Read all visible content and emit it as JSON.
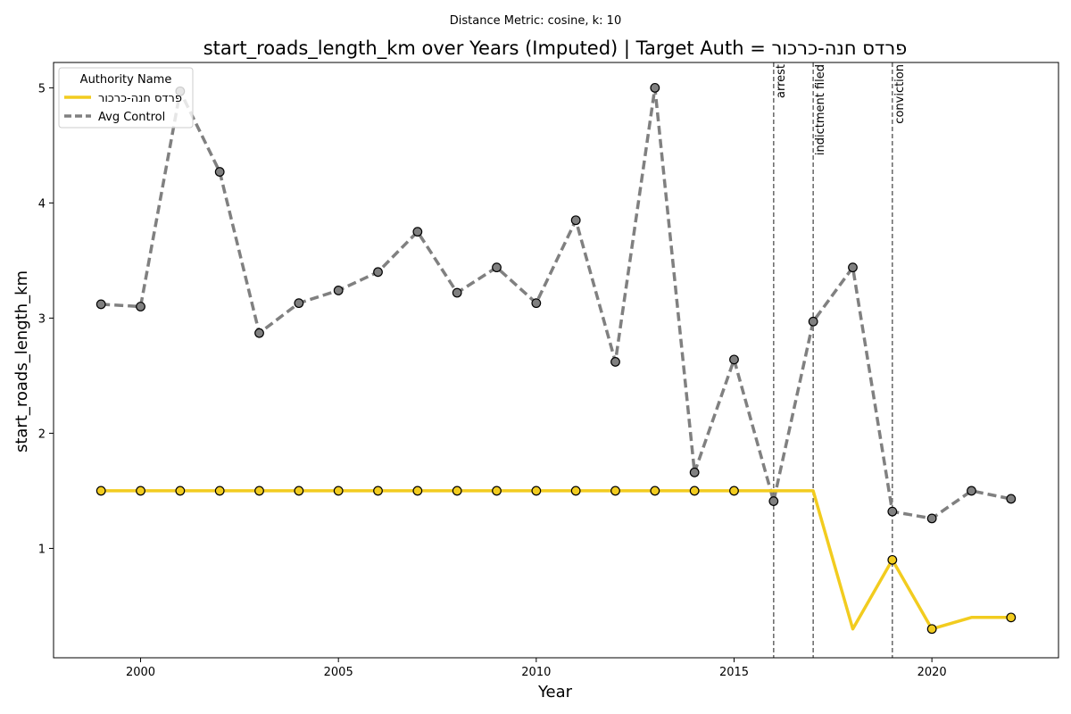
{
  "chart_data": {
    "type": "line",
    "suptitle": "Distance Metric: cosine, k: 10",
    "title": "start_roads_length_km over Years (Imputed) | Target Auth = פרדס חנה-כרכור",
    "xlabel": "Year",
    "ylabel": "start_roads_length_km",
    "xlim": [
      1997.8,
      2023.2
    ],
    "ylim": [
      0.05,
      5.22
    ],
    "xticks": [
      2000,
      2005,
      2010,
      2015,
      2020
    ],
    "yticks": [
      1,
      2,
      3,
      4,
      5
    ],
    "grid": false,
    "legend": {
      "title": "Authority Name",
      "placement": "upper-left"
    },
    "x": [
      1999,
      2000,
      2001,
      2002,
      2003,
      2004,
      2005,
      2006,
      2007,
      2008,
      2009,
      2010,
      2011,
      2012,
      2013,
      2014,
      2015,
      2016,
      2017,
      2018,
      2019,
      2020,
      2021,
      2022
    ],
    "series": [
      {
        "name": "פרדס חנה-כרכור",
        "color": "#f2cc1f",
        "style": "solid",
        "values": [
          1.5,
          1.5,
          1.5,
          1.5,
          1.5,
          1.5,
          1.5,
          1.5,
          1.5,
          1.5,
          1.5,
          1.5,
          1.5,
          1.5,
          1.5,
          1.5,
          1.5,
          1.5,
          1.5,
          0.3,
          0.9,
          0.3,
          0.4,
          0.4
        ],
        "marker_years": [
          1999,
          2000,
          2001,
          2002,
          2003,
          2004,
          2005,
          2006,
          2007,
          2008,
          2009,
          2010,
          2011,
          2012,
          2013,
          2014,
          2015,
          2019,
          2020,
          2022
        ]
      },
      {
        "name": "Avg Control",
        "color": "#808080",
        "style": "dashed",
        "values": [
          3.12,
          3.1,
          4.97,
          4.27,
          2.87,
          3.13,
          3.24,
          3.4,
          3.75,
          3.22,
          3.44,
          3.13,
          3.85,
          2.62,
          5.0,
          1.66,
          2.64,
          1.41,
          2.97,
          3.44,
          1.32,
          1.26,
          1.5,
          1.43
        ],
        "marker_years": [
          1999,
          2000,
          2001,
          2002,
          2003,
          2004,
          2005,
          2006,
          2007,
          2008,
          2009,
          2010,
          2011,
          2012,
          2013,
          2014,
          2015,
          2016,
          2017,
          2018,
          2019,
          2020,
          2021,
          2022
        ]
      }
    ],
    "events": [
      {
        "year": 2016,
        "label": "arrest"
      },
      {
        "year": 2017,
        "label": "indictment filed"
      },
      {
        "year": 2019,
        "label": "conviction"
      }
    ]
  }
}
